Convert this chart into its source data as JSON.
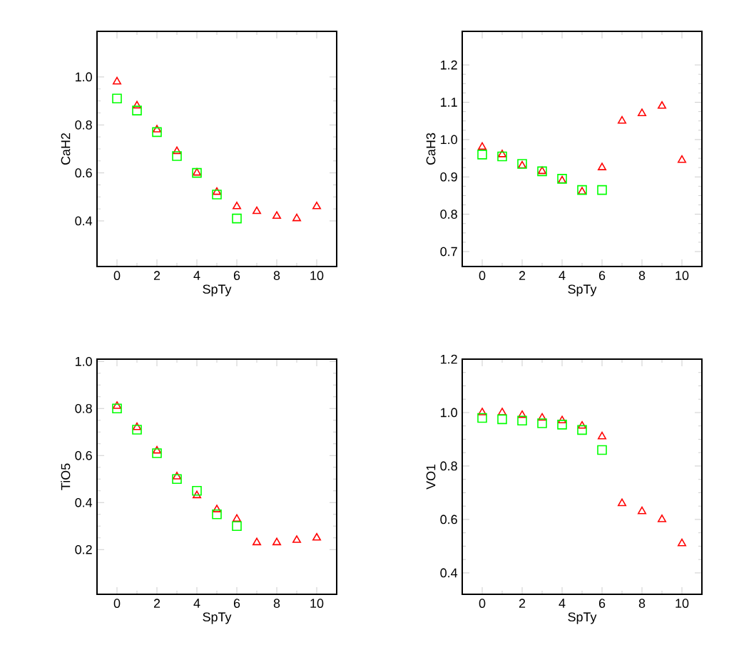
{
  "chart_data": [
    {
      "type": "scatter",
      "xlabel": "SpTy",
      "ylabel": "CaH2",
      "xlim": [
        -1,
        11
      ],
      "ylim": [
        0.21,
        1.19
      ],
      "xticks": [
        0,
        2,
        4,
        6,
        8,
        10
      ],
      "yticks": [
        {
          "value": 0.4,
          "label": "0.4"
        },
        {
          "value": 0.6,
          "label": "0.6"
        },
        {
          "value": 0.8,
          "label": "0.8"
        },
        {
          "value": 1.0,
          "label": "1.0"
        }
      ],
      "series": [
        {
          "color": "#ff0000",
          "marker": "triangle",
          "x": [
            0,
            1,
            2,
            3,
            4,
            5,
            6,
            7,
            8,
            9,
            10
          ],
          "values": [
            0.98,
            0.88,
            0.78,
            0.69,
            0.6,
            0.52,
            0.46,
            0.44,
            0.42,
            0.41,
            0.46
          ]
        },
        {
          "color": "#00ff00",
          "marker": "square",
          "x": [
            0,
            1,
            2,
            3,
            4,
            5,
            6
          ],
          "values": [
            0.91,
            0.86,
            0.77,
            0.67,
            0.6,
            0.51,
            0.41
          ]
        }
      ]
    },
    {
      "type": "scatter",
      "xlabel": "SpTy",
      "ylabel": "CaH3",
      "xlim": [
        -1,
        11
      ],
      "ylim": [
        0.66,
        1.29
      ],
      "xticks": [
        0,
        2,
        4,
        6,
        8,
        10
      ],
      "yticks": [
        {
          "value": 0.7,
          "label": "0.7"
        },
        {
          "value": 0.8,
          "label": "0.8"
        },
        {
          "value": 0.9,
          "label": "0.9"
        },
        {
          "value": 1.0,
          "label": "1.0"
        },
        {
          "value": 1.1,
          "label": "1.1"
        },
        {
          "value": 1.2,
          "label": "1.2"
        }
      ],
      "series": [
        {
          "color": "#ff0000",
          "marker": "triangle",
          "x": [
            0,
            1,
            2,
            3,
            4,
            5,
            6,
            7,
            8,
            9,
            10
          ],
          "values": [
            0.98,
            0.96,
            0.93,
            0.915,
            0.89,
            0.86,
            0.925,
            1.05,
            1.07,
            1.09,
            0.945
          ]
        },
        {
          "color": "#00ff00",
          "marker": "square",
          "x": [
            0,
            1,
            2,
            3,
            4,
            5,
            6
          ],
          "values": [
            0.96,
            0.955,
            0.935,
            0.915,
            0.895,
            0.865,
            0.865
          ]
        }
      ]
    },
    {
      "type": "scatter",
      "xlabel": "SpTy",
      "ylabel": "TiO5",
      "xlim": [
        -1,
        11
      ],
      "ylim": [
        0.01,
        1.01
      ],
      "xticks": [
        0,
        2,
        4,
        6,
        8,
        10
      ],
      "yticks": [
        {
          "value": 0.2,
          "label": "0.2"
        },
        {
          "value": 0.4,
          "label": "0.4"
        },
        {
          "value": 0.6,
          "label": "0.6"
        },
        {
          "value": 0.8,
          "label": "0.8"
        },
        {
          "value": 1.0,
          "label": "1.0"
        }
      ],
      "series": [
        {
          "color": "#ff0000",
          "marker": "triangle",
          "x": [
            0,
            1,
            2,
            3,
            4,
            5,
            6,
            7,
            8,
            9,
            10
          ],
          "values": [
            0.81,
            0.72,
            0.62,
            0.51,
            0.43,
            0.37,
            0.33,
            0.23,
            0.23,
            0.24,
            0.25
          ]
        },
        {
          "color": "#00ff00",
          "marker": "square",
          "x": [
            0,
            1,
            2,
            3,
            4,
            5,
            6
          ],
          "values": [
            0.8,
            0.71,
            0.61,
            0.5,
            0.45,
            0.35,
            0.3
          ]
        }
      ]
    },
    {
      "type": "scatter",
      "xlabel": "SpTy",
      "ylabel": "VO1",
      "xlim": [
        -1,
        11
      ],
      "ylim": [
        0.32,
        1.2
      ],
      "xticks": [
        0,
        2,
        4,
        6,
        8,
        10
      ],
      "yticks": [
        {
          "value": 0.4,
          "label": "0.4"
        },
        {
          "value": 0.6,
          "label": "0.6"
        },
        {
          "value": 0.8,
          "label": "0.8"
        },
        {
          "value": 1.0,
          "label": "1.0"
        },
        {
          "value": 1.2,
          "label": "1.2"
        }
      ],
      "series": [
        {
          "color": "#ff0000",
          "marker": "triangle",
          "x": [
            0,
            1,
            2,
            3,
            4,
            5,
            6,
            7,
            8,
            9,
            10
          ],
          "values": [
            1.0,
            1.0,
            0.99,
            0.98,
            0.97,
            0.95,
            0.91,
            0.66,
            0.63,
            0.6,
            0.51
          ]
        },
        {
          "color": "#00ff00",
          "marker": "square",
          "x": [
            0,
            1,
            2,
            3,
            4,
            5,
            6
          ],
          "values": [
            0.98,
            0.975,
            0.97,
            0.96,
            0.955,
            0.935,
            0.86
          ]
        }
      ]
    }
  ]
}
